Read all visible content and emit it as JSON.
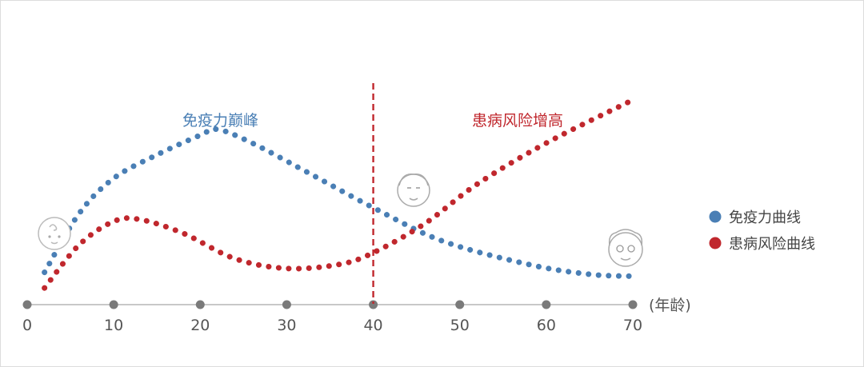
{
  "chart_data": {
    "type": "line",
    "x_unit_label": "(年龄)",
    "x_ticks": [
      0,
      10,
      20,
      30,
      40,
      50,
      60,
      70
    ],
    "xlim": [
      0,
      70
    ],
    "ylim": [
      0,
      10
    ],
    "grid": false,
    "legend_position": "right",
    "reference_line": {
      "x": 40,
      "color": "#c0272d",
      "style": "dashed"
    },
    "series": [
      {
        "name": "免疫力曲线",
        "color": "#4a7fb5",
        "points": [
          [
            2,
            1.2
          ],
          [
            6,
            4.2
          ],
          [
            10,
            6.0
          ],
          [
            15,
            7.2
          ],
          [
            20,
            8.2
          ],
          [
            22,
            8.5
          ],
          [
            26,
            7.8
          ],
          [
            32,
            6.4
          ],
          [
            40,
            4.5
          ],
          [
            48,
            2.8
          ],
          [
            58,
            1.6
          ],
          [
            65,
            1.1
          ],
          [
            70,
            1.0
          ]
        ]
      },
      {
        "name": "患病风险曲线",
        "color": "#c0272d",
        "points": [
          [
            2,
            0.4
          ],
          [
            6,
            2.6
          ],
          [
            10,
            3.8
          ],
          [
            13,
            3.9
          ],
          [
            18,
            3.2
          ],
          [
            24,
            1.9
          ],
          [
            30,
            1.4
          ],
          [
            36,
            1.6
          ],
          [
            40,
            2.2
          ],
          [
            46,
            3.7
          ],
          [
            52,
            5.7
          ],
          [
            60,
            7.8
          ],
          [
            70,
            10.0
          ]
        ]
      }
    ],
    "annotations": [
      {
        "text": "免疫力巅峰",
        "color": "#4a7fb5"
      },
      {
        "text": "患病风险增高",
        "color": "#c0272d"
      }
    ]
  }
}
